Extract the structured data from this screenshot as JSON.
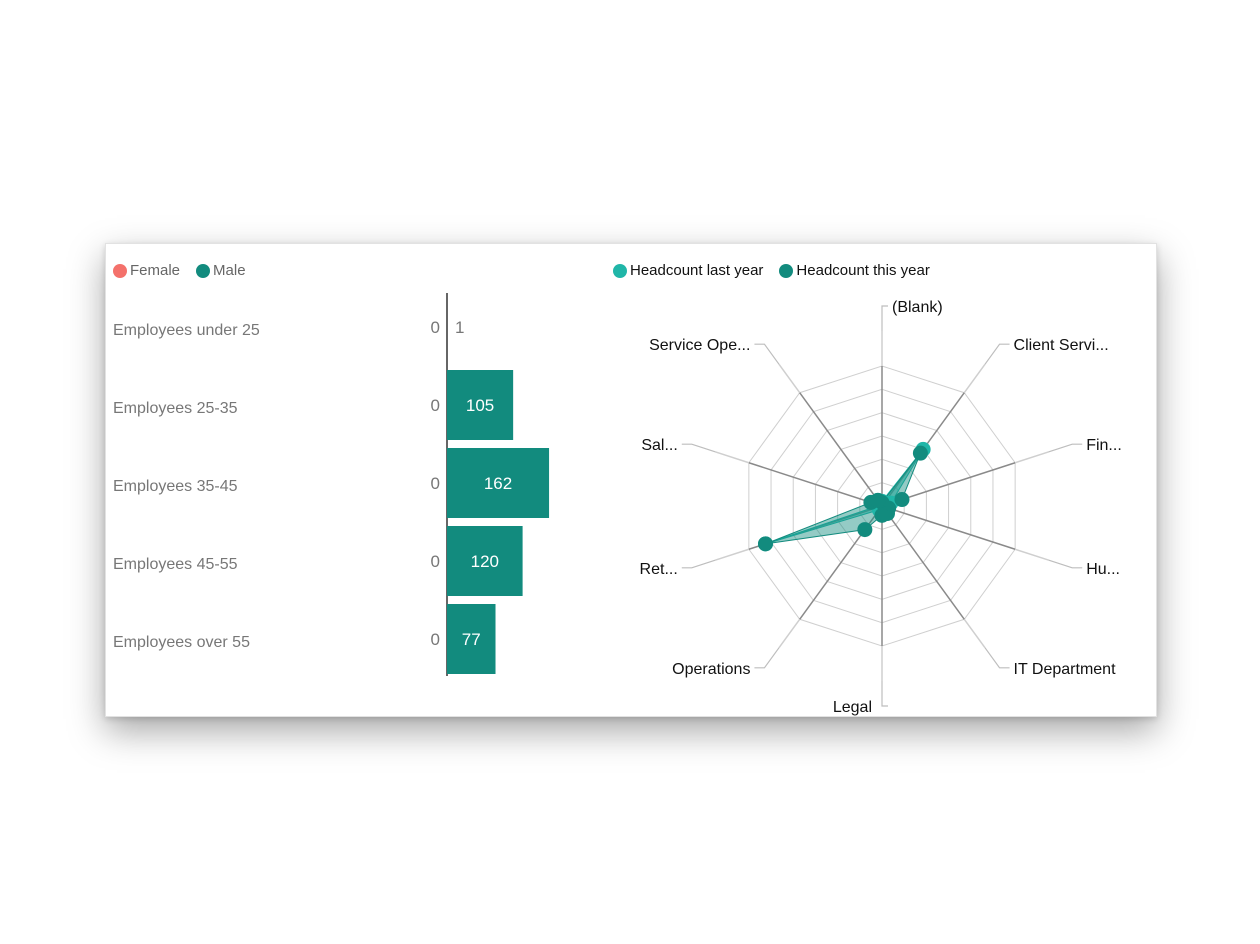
{
  "chart_data": [
    {
      "type": "bar",
      "subtype": "population-pyramid",
      "title": "",
      "legend": [
        {
          "name": "Female",
          "color": "#f4716b"
        },
        {
          "name": "Male",
          "color": "#128b7e"
        }
      ],
      "categories": [
        "Employees under 25",
        "Employees 25-35",
        "Employees 35-45",
        "Employees 45-55",
        "Employees over 55"
      ],
      "series": [
        {
          "name": "Female",
          "color": "#f4716b",
          "values": [
            0,
            0,
            0,
            0,
            0
          ]
        },
        {
          "name": "Male",
          "color": "#128b7e",
          "values": [
            1,
            105,
            162,
            120,
            77
          ]
        }
      ]
    },
    {
      "type": "radar",
      "title": "",
      "legend_position": "top-left",
      "legend": [
        {
          "name": "Headcount last year",
          "color": "#20b6a8"
        },
        {
          "name": "Headcount this year",
          "color": "#128b7e"
        }
      ],
      "axes": [
        "(Blank)",
        "Client Servi...",
        "Fin...",
        "Hu...",
        "IT Department",
        "Legal",
        "Operations",
        "Ret...",
        "Sal...",
        "Service Ope..."
      ],
      "series": [
        {
          "name": "Headcount last year",
          "color": "#20b6a8",
          "values": [
            4,
            60,
            8,
            3,
            5,
            3,
            4,
            105,
            2,
            6
          ]
        },
        {
          "name": "Headcount this year",
          "color": "#128b7e",
          "values": [
            3,
            56,
            18,
            6,
            8,
            8,
            25,
            105,
            10,
            6
          ]
        }
      ],
      "rmax": 120,
      "rings": 6
    }
  ]
}
